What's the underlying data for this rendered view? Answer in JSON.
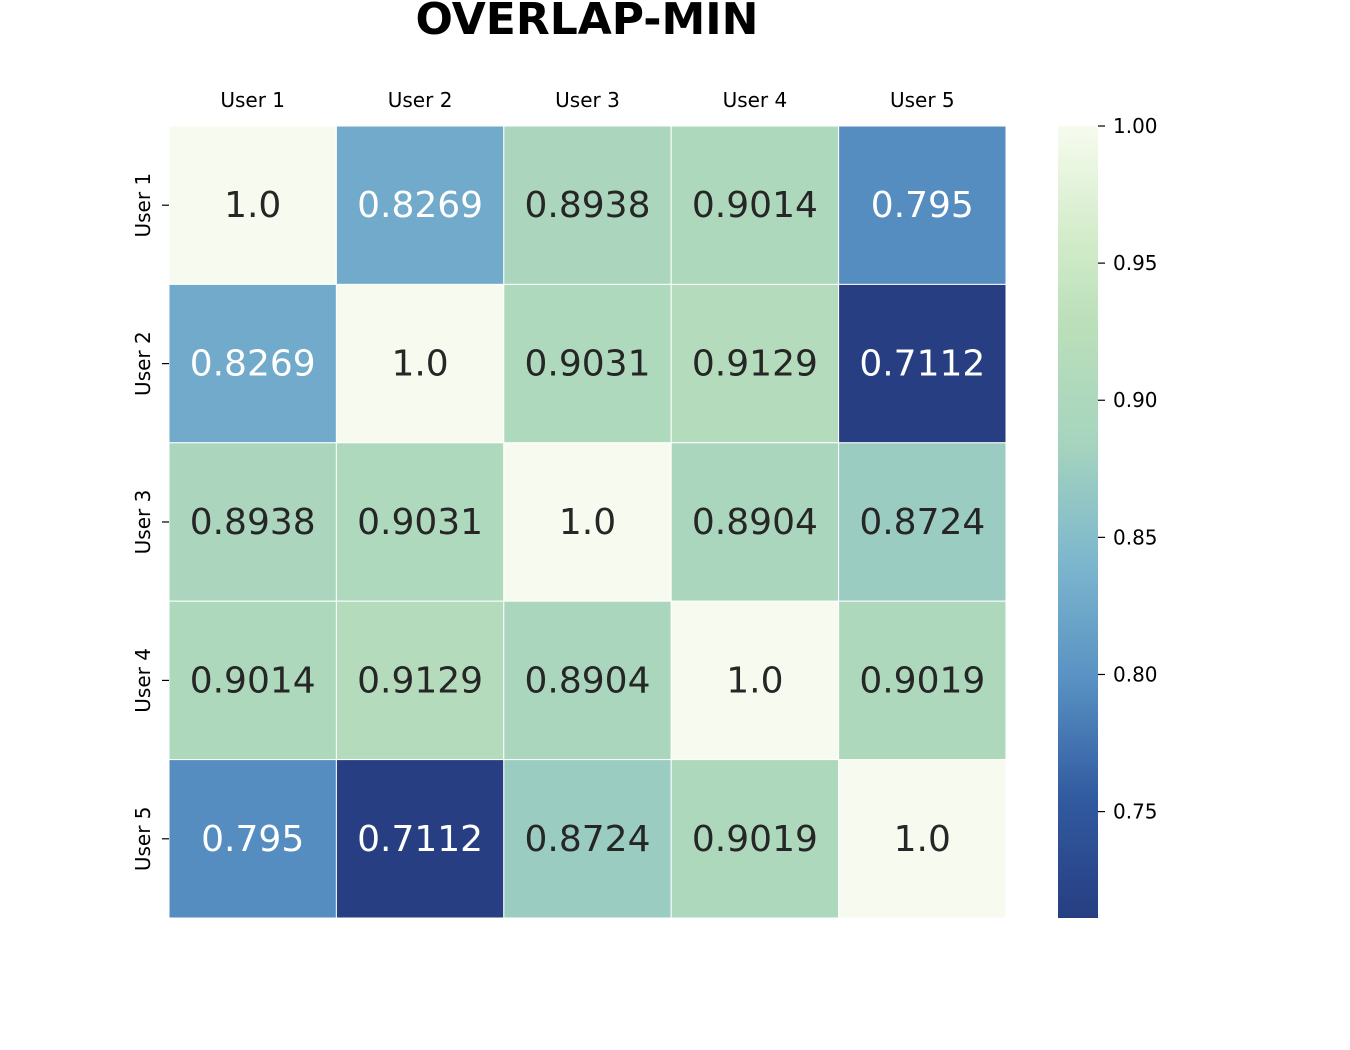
{
  "chart_data": {
    "type": "heatmap",
    "title": "OVERLAP-MIN",
    "xlabel": "",
    "ylabel": "",
    "x_categories": [
      "User 1",
      "User 2",
      "User 3",
      "User 4",
      "User 5"
    ],
    "y_categories": [
      "User 1",
      "User 2",
      "User 3",
      "User 4",
      "User 5"
    ],
    "values": [
      [
        1.0,
        0.8269,
        0.8938,
        0.9014,
        0.795
      ],
      [
        0.8269,
        1.0,
        0.9031,
        0.9129,
        0.7112
      ],
      [
        0.8938,
        0.9031,
        1.0,
        0.8904,
        0.8724
      ],
      [
        0.9014,
        0.9129,
        0.8904,
        1.0,
        0.9019
      ],
      [
        0.795,
        0.7112,
        0.8724,
        0.9019,
        1.0
      ]
    ],
    "value_labels": [
      [
        "1.0",
        "0.8269",
        "0.8938",
        "0.9014",
        "0.795"
      ],
      [
        "0.8269",
        "1.0",
        "0.9031",
        "0.9129",
        "0.7112"
      ],
      [
        "0.8938",
        "0.9031",
        "1.0",
        "0.8904",
        "0.8724"
      ],
      [
        "0.9014",
        "0.9129",
        "0.8904",
        "1.0",
        "0.9019"
      ],
      [
        "0.795",
        "0.7112",
        "0.8724",
        "0.9019",
        "1.0"
      ]
    ],
    "colorbar": {
      "colormap": "YlGnBu",
      "vmin": 0.7112,
      "vmax": 1.0,
      "ticks": [
        0.75,
        0.8,
        0.85,
        0.9,
        0.95,
        1.0
      ],
      "tick_labels": [
        "0.75",
        "0.80",
        "0.85",
        "0.90",
        "0.95",
        "1.00"
      ]
    },
    "x_tick_position": "top",
    "legend": "colorbar-right"
  }
}
